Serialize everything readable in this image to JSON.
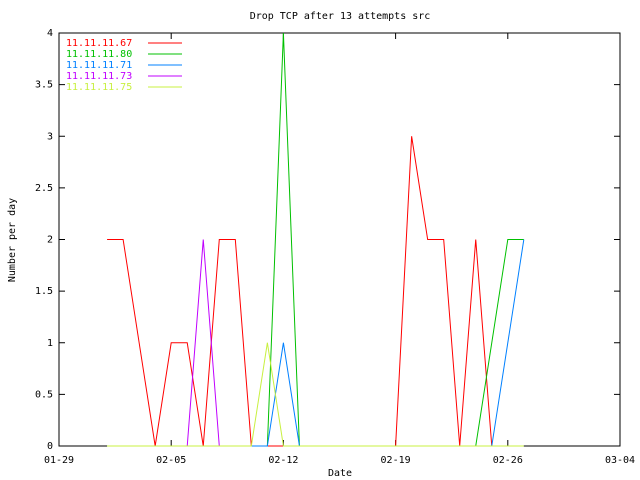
{
  "chart_data": {
    "type": "line",
    "title": "Drop TCP after 13 attempts src",
    "x_label": "Date",
    "y_label": "Number per day",
    "xlim": [
      "01-29",
      "03-04"
    ],
    "xticks": [
      "01-29",
      "02-05",
      "02-12",
      "02-19",
      "02-26",
      "03-04"
    ],
    "ylim": [
      0,
      4
    ],
    "yticks": [
      0,
      0.5,
      1,
      1.5,
      2,
      2.5,
      3,
      3.5,
      4
    ],
    "legend": "top-left",
    "series": [
      {
        "name": "11.11.11.67",
        "color": "#ff0000",
        "x": [
          "02-01",
          "02-02",
          "02-04",
          "02-05",
          "02-06",
          "02-07",
          "02-08",
          "02-09",
          "02-10",
          "02-11",
          "02-12",
          "02-13",
          "02-14",
          "02-15",
          "02-16",
          "02-17",
          "02-18",
          "02-19",
          "02-20",
          "02-21",
          "02-22",
          "02-23",
          "02-24",
          "02-25"
        ],
        "values": [
          2,
          2,
          0,
          1,
          1,
          0,
          2,
          2,
          0,
          0,
          0,
          0,
          0,
          0,
          0,
          0,
          0,
          0,
          3,
          2,
          2,
          0,
          2,
          0
        ]
      },
      {
        "name": "11.11.11.80",
        "color": "#00c000",
        "x": [
          "02-01",
          "02-02",
          "02-03",
          "02-04",
          "02-05",
          "02-06",
          "02-07",
          "02-08",
          "02-09",
          "02-10",
          "02-11",
          "02-12",
          "02-13",
          "02-14",
          "02-15",
          "02-16",
          "02-17",
          "02-18",
          "02-19",
          "02-20",
          "02-21",
          "02-22",
          "02-23",
          "02-24",
          "02-25",
          "02-26",
          "02-27"
        ],
        "values": [
          0,
          0,
          0,
          0,
          0,
          0,
          0,
          0,
          0,
          0,
          0,
          4,
          0,
          0,
          0,
          0,
          0,
          0,
          0,
          0,
          0,
          0,
          0,
          0,
          1,
          2,
          2
        ]
      },
      {
        "name": "11.11.11.71",
        "color": "#0080ff",
        "x": [
          "02-10",
          "02-11",
          "02-12",
          "02-13",
          "02-14",
          "02-15",
          "02-16",
          "02-17",
          "02-18",
          "02-19",
          "02-20",
          "02-21",
          "02-22",
          "02-23",
          "02-24",
          "02-25",
          "02-26",
          "02-27"
        ],
        "values": [
          0,
          0,
          1,
          0,
          0,
          0,
          0,
          0,
          0,
          0,
          0,
          0,
          0,
          0,
          0,
          0,
          1,
          2
        ]
      },
      {
        "name": "11.11.11.73",
        "color": "#c000ff",
        "x": [
          "02-06",
          "02-07",
          "02-08"
        ],
        "values": [
          0,
          2,
          0
        ]
      },
      {
        "name": "11.11.11.75",
        "color": "#c8f040",
        "x": [
          "02-01",
          "02-02",
          "02-03",
          "02-04",
          "02-05",
          "02-06",
          "02-07",
          "02-08",
          "02-09",
          "02-10",
          "02-11",
          "02-12",
          "02-13",
          "02-14",
          "02-15",
          "02-16",
          "02-17",
          "02-18",
          "02-19",
          "02-20",
          "02-21",
          "02-22",
          "02-23",
          "02-24",
          "02-25",
          "02-26",
          "02-27"
        ],
        "values": [
          0,
          0,
          0,
          0,
          0,
          0,
          0,
          0,
          0,
          0,
          1,
          0,
          0,
          0,
          0,
          0,
          0,
          0,
          0,
          0,
          0,
          0,
          0,
          0,
          0,
          0,
          0
        ]
      }
    ]
  }
}
